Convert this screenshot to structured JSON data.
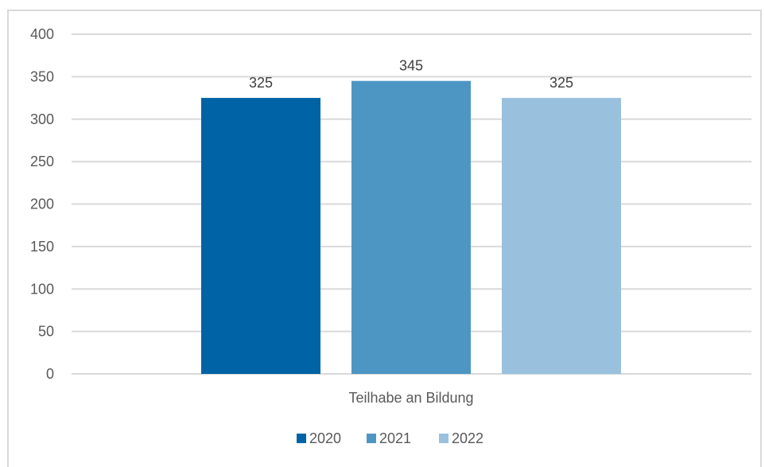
{
  "chart_data": {
    "type": "bar",
    "categories": [
      "Teilhabe an Bildung"
    ],
    "series": [
      {
        "name": "2020",
        "values": [
          325
        ],
        "color": "#0063a6"
      },
      {
        "name": "2021",
        "values": [
          345
        ],
        "color": "#4d96c4"
      },
      {
        "name": "2022",
        "values": [
          325
        ],
        "color": "#99c1de"
      }
    ],
    "y_ticks": [
      "0",
      "50",
      "100",
      "150",
      "200",
      "250",
      "300",
      "350",
      "400"
    ],
    "ylim": [
      0,
      400
    ],
    "data_labels": [
      "325",
      "345",
      "325"
    ],
    "grid": true,
    "legend_position": "bottom",
    "gridline_color": "#d9d9d9"
  }
}
